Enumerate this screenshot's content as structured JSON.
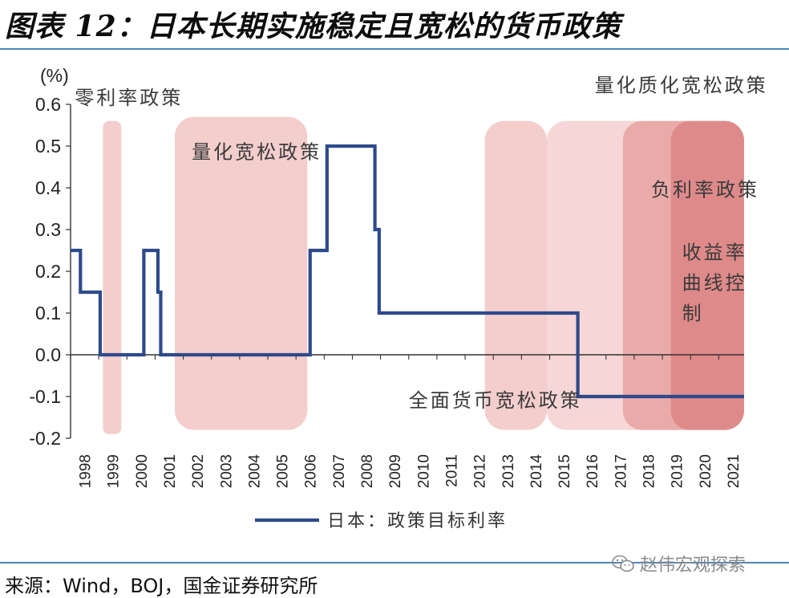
{
  "figure": {
    "title": "图表 12：日本长期实施稳定且宽松的货币政策",
    "source": "来源：Wind，BOJ，国金证券研究所",
    "watermark": "赵伟宏观探索",
    "watermark_icon": "wechat-icon"
  },
  "chart_data": {
    "type": "line",
    "ylabel": "(%)",
    "ylim": [
      -0.2,
      0.6
    ],
    "yticks": [
      "0.6",
      "0.5",
      "0.4",
      "0.3",
      "0.2",
      "0.1",
      "0.0",
      "-0.1",
      "-0.2"
    ],
    "ytick_values": [
      0.6,
      0.5,
      0.4,
      0.3,
      0.2,
      0.1,
      0.0,
      -0.1,
      -0.2
    ],
    "xlim": [
      1998,
      2021.9
    ],
    "xticks": [
      "1998",
      "1999",
      "2000",
      "2001",
      "2002",
      "2003",
      "2004",
      "2005",
      "2006",
      "2007",
      "2008",
      "2009",
      "2010",
      "2011",
      "2012",
      "2013",
      "2014",
      "2015",
      "2016",
      "2017",
      "2018",
      "2019",
      "2020",
      "2021"
    ],
    "legend_position": "bottom",
    "series": [
      {
        "name": "日本：政策目标利率",
        "color": "#2e4a8c",
        "step": true,
        "points": [
          [
            1998.0,
            0.25
          ],
          [
            1998.35,
            0.15
          ],
          [
            1999.05,
            0.0
          ],
          [
            2000.6,
            0.25
          ],
          [
            2001.1,
            0.15
          ],
          [
            2001.2,
            0.0
          ],
          [
            2006.5,
            0.25
          ],
          [
            2007.1,
            0.5
          ],
          [
            2008.8,
            0.3
          ],
          [
            2008.95,
            0.1
          ],
          [
            2016.0,
            -0.1
          ],
          [
            2021.9,
            -0.1
          ]
        ]
      }
    ],
    "regions": [
      {
        "label": "零利率政策",
        "x0": 1999.15,
        "x1": 1999.8,
        "y0": -0.19,
        "y1": 0.56,
        "color": "#f2c4c4",
        "label_x": 1998.15,
        "label_y": 0.6
      },
      {
        "label": "量化宽松政策",
        "x0": 2001.7,
        "x1": 2006.4,
        "y0": -0.18,
        "y1": 0.57,
        "color": "#f2c4c4",
        "label_x": 2002.3,
        "label_y": 0.47
      },
      {
        "label": "全面货币宽松政策",
        "x0": 2012.7,
        "x1": 2014.9,
        "y0": -0.18,
        "y1": 0.56,
        "color": "#f2c4c4",
        "label_x": 2010.0,
        "label_y": -0.125
      },
      {
        "label": "量化质化宽松政策",
        "x0": 2014.9,
        "x1": 2021.9,
        "y0": -0.18,
        "y1": 0.56,
        "color": "#f5cfcf",
        "label_x": 2016.6,
        "label_y": 0.63
      },
      {
        "label": "负利率政策",
        "x0": 2017.6,
        "x1": 2021.9,
        "y0": -0.18,
        "y1": 0.56,
        "color": "#e8a2a2",
        "label_x": 2018.6,
        "label_y": 0.38
      },
      {
        "label": "收益率曲线控制",
        "x0": 2019.3,
        "x1": 2021.9,
        "y0": -0.18,
        "y1": 0.56,
        "color": "#dd8585",
        "label_x": 2019.7,
        "label_y": 0.23
      }
    ]
  }
}
